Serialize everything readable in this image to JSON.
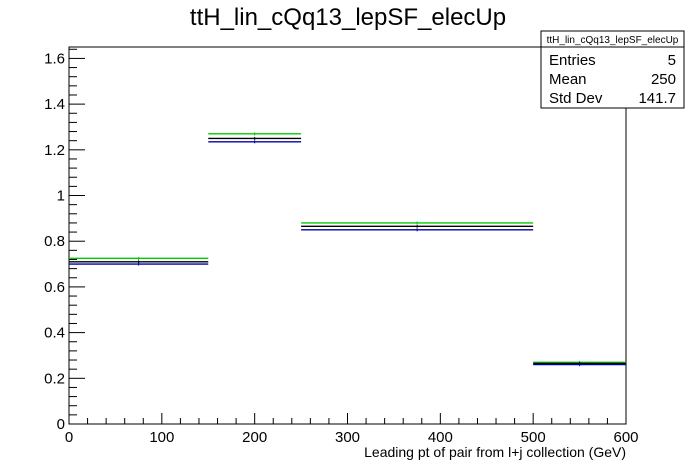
{
  "chart_data": {
    "type": "histogram",
    "title": "ttH_lin_cQq13_lepSF_elecUp",
    "xlabel": "Leading pt of pair from l+j collection (GeV)",
    "ylabel": "",
    "xlim": [
      0,
      600
    ],
    "ylim": [
      0,
      1.65
    ],
    "x_ticks": [
      0,
      100,
      200,
      300,
      400,
      500,
      600
    ],
    "x_tick_labels": [
      "0",
      "100",
      "200",
      "300",
      "400",
      "500",
      "600"
    ],
    "y_ticks": [
      0,
      0.2,
      0.4,
      0.6,
      0.8,
      1,
      1.2,
      1.4,
      1.6
    ],
    "y_tick_labels": [
      "0",
      "0.2",
      "0.4",
      "0.6",
      "0.8",
      "1",
      "1.2",
      "1.4",
      "1.6"
    ],
    "bin_edges": [
      0,
      150,
      250,
      500,
      600
    ],
    "series": [
      {
        "color": "#00cc00",
        "values": [
          0.725,
          1.27,
          0.88,
          0.27
        ]
      },
      {
        "color": "#000000",
        "values": [
          0.71,
          1.25,
          0.865,
          0.265
        ]
      },
      {
        "color": "#0000aa",
        "values": [
          0.7,
          1.235,
          0.85,
          0.26
        ]
      }
    ],
    "grid": false,
    "stats": {
      "title": "ttH_lin_cQq13_lepSF_elecUp",
      "rows": [
        {
          "label": "Entries",
          "value": "5"
        },
        {
          "label": "Mean",
          "value": "250"
        },
        {
          "label": "Std Dev",
          "value": "141.7"
        }
      ]
    }
  }
}
